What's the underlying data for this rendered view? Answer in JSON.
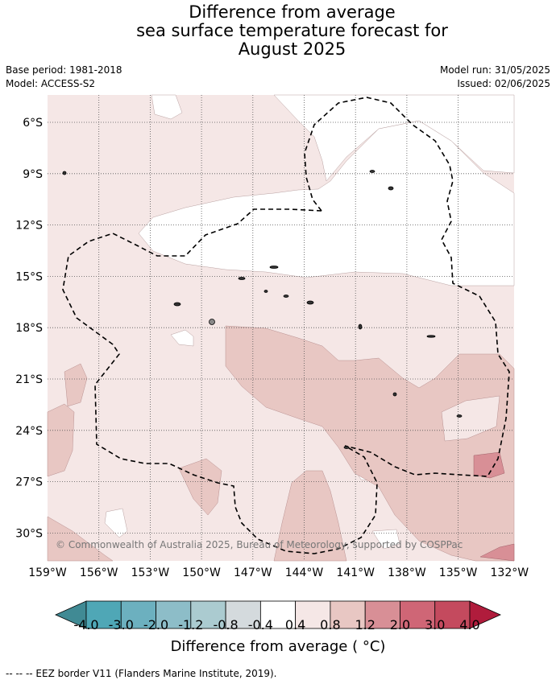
{
  "title": {
    "line1": "Difference from average",
    "line2": "sea surface temperature forecast for",
    "line3": "August 2025"
  },
  "meta": {
    "base_period": "Base period: 1981-2018",
    "model": "Model: ACCESS-S2",
    "model_run": "Model run: 31/05/2025",
    "issued": "Issued: 02/06/2025"
  },
  "map": {
    "lat_labels": [
      "6°S",
      "9°S",
      "12°S",
      "15°S",
      "18°S",
      "21°S",
      "24°S",
      "27°S",
      "30°S"
    ],
    "lon_labels": [
      "159°W",
      "156°W",
      "153°W",
      "150°W",
      "147°W",
      "144°W",
      "141°W",
      "138°W",
      "135°W",
      "132°W"
    ],
    "copyright": "© Commonwealth of Australia 2025, Bureau of Meteorology, supported by COSPPac"
  },
  "colorbar": {
    "colors": [
      "#408a94",
      "#4fa7b6",
      "#6cb0bf",
      "#8dbdc8",
      "#abcbd0",
      "#d4dadd",
      "#ffffff",
      "#f5e7e6",
      "#e8c7c3",
      "#d88f96",
      "#cf6676",
      "#c44a5e",
      "#b01c3c"
    ],
    "tick_labels": [
      "-4.0",
      "-3.0",
      "-2.0",
      "-1.2",
      "-0.8",
      "-0.4",
      "0.4",
      "0.8",
      "1.2",
      "2.0",
      "3.0",
      "4.0"
    ],
    "label": "Difference from average ( °C)"
  },
  "footnote": "--  --  -- EEZ border V11 (Flanders Marine Institute, 2019)."
}
